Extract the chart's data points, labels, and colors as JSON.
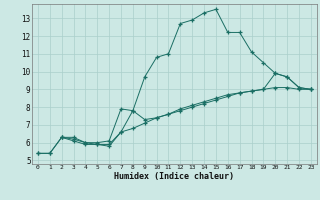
{
  "xlabel": "Humidex (Indice chaleur)",
  "background_color": "#cce8e4",
  "grid_color": "#aacfcb",
  "line_color": "#1a6e64",
  "xlim": [
    -0.5,
    23.5
  ],
  "ylim": [
    4.8,
    13.8
  ],
  "xticks": [
    0,
    1,
    2,
    3,
    4,
    5,
    6,
    7,
    8,
    9,
    10,
    11,
    12,
    13,
    14,
    15,
    16,
    17,
    18,
    19,
    20,
    21,
    22,
    23
  ],
  "yticks": [
    5,
    6,
    7,
    8,
    9,
    10,
    11,
    12,
    13
  ],
  "line1_x": [
    0,
    1,
    2,
    3,
    4,
    5,
    6,
    7,
    8,
    9,
    10,
    11,
    12,
    13,
    14,
    15,
    16,
    17,
    18,
    19,
    20,
    21,
    22,
    23
  ],
  "line1_y": [
    5.4,
    5.4,
    6.3,
    6.3,
    6.0,
    6.0,
    6.1,
    7.9,
    7.8,
    9.7,
    10.8,
    11.0,
    12.7,
    12.9,
    13.3,
    13.5,
    12.2,
    12.2,
    11.1,
    10.5,
    9.9,
    9.7,
    9.1,
    9.0
  ],
  "line2_x": [
    2,
    3,
    4,
    5,
    6,
    7,
    8,
    9,
    10,
    11,
    12,
    13,
    14,
    15,
    16,
    17,
    18,
    19,
    20,
    21,
    22,
    23
  ],
  "line2_y": [
    6.3,
    6.1,
    5.9,
    5.9,
    5.9,
    6.6,
    7.8,
    7.3,
    7.4,
    7.6,
    7.9,
    8.1,
    8.3,
    8.5,
    8.7,
    8.8,
    8.9,
    9.0,
    9.9,
    9.7,
    9.1,
    9.0
  ],
  "line3_x": [
    0,
    1,
    2,
    3,
    4,
    5,
    6,
    7,
    8,
    9,
    10,
    11,
    12,
    13,
    14,
    15,
    16,
    17,
    18,
    19,
    20,
    21,
    22,
    23
  ],
  "line3_y": [
    5.4,
    5.4,
    6.3,
    6.2,
    6.0,
    5.9,
    5.8,
    6.6,
    6.8,
    7.1,
    7.4,
    7.6,
    7.8,
    8.0,
    8.2,
    8.4,
    8.6,
    8.8,
    8.9,
    9.0,
    9.1,
    9.1,
    9.0,
    9.0
  ]
}
